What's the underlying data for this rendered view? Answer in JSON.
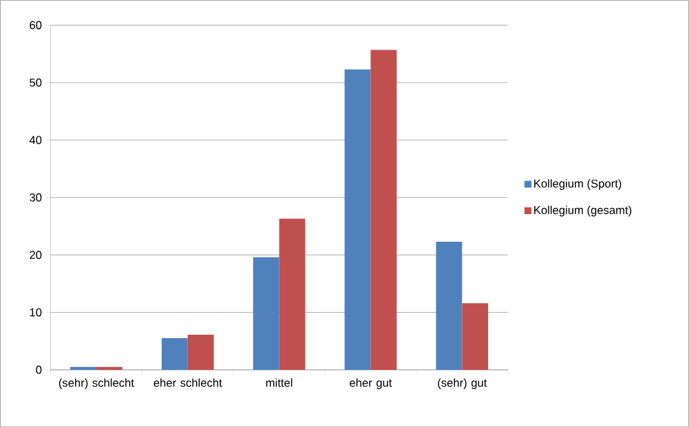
{
  "chart_data": {
    "type": "bar",
    "categories": [
      "(sehr) schlecht",
      "eher schlecht",
      "mittel",
      "eher gut",
      "(sehr) gut"
    ],
    "series": [
      {
        "name": "Kollegium (Sport)",
        "color": "#4f81bd",
        "values": [
          0.5,
          5.5,
          19.6,
          52.3,
          22.3
        ]
      },
      {
        "name": "Kollegium (gesamt)",
        "color": "#c0504d",
        "values": [
          0.5,
          6.1,
          26.3,
          55.7,
          11.6
        ]
      }
    ],
    "ylim": [
      0,
      60
    ],
    "yticks": [
      0,
      10,
      20,
      30,
      40,
      50,
      60
    ],
    "grid": "y",
    "legend": "right"
  }
}
